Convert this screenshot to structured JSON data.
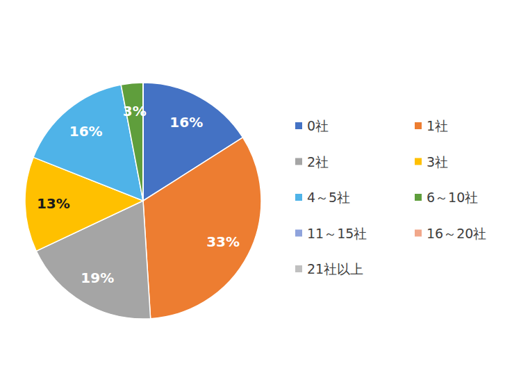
{
  "chart_data": {
    "type": "pie",
    "categories": [
      "0社",
      "1社",
      "2社",
      "3社",
      "4～5社",
      "6～10社",
      "11～15社",
      "16～20社",
      "21社以上"
    ],
    "values": [
      16,
      33,
      19,
      13,
      16,
      3,
      0,
      0,
      0
    ],
    "value_labels": [
      "16%",
      "33%",
      "19%",
      "13%",
      "16%",
      "3%",
      null,
      null,
      null
    ],
    "colors": [
      "#4472c4",
      "#ed7d31",
      "#a5a5a5",
      "#ffc000",
      "#4fb3e8",
      "#5f9e3c",
      "#8fa3dc",
      "#f1a78a",
      "#c0c0c0"
    ],
    "data_labels": true
  }
}
